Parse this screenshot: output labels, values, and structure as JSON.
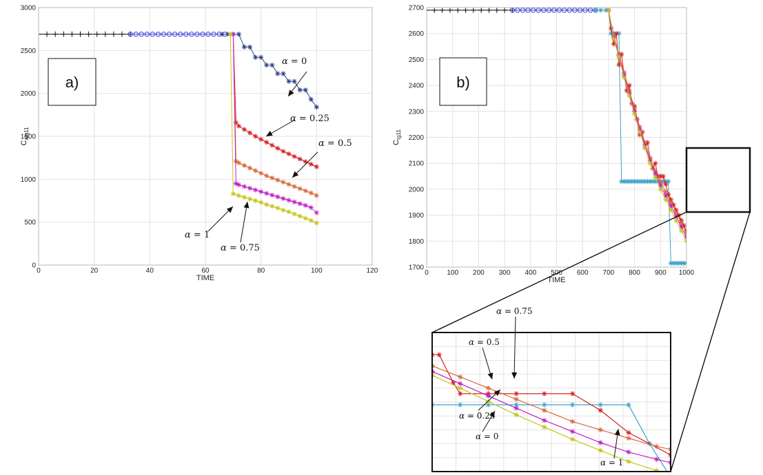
{
  "chart_data": [
    {
      "id": "a",
      "type": "line",
      "panel_label": "a)",
      "xlabel": "TIME",
      "ylabel_main": "C",
      "ylabel_sub": "alg11",
      "xlim": [
        0,
        120
      ],
      "ylim": [
        0,
        3000
      ],
      "xticks": [
        0,
        20,
        40,
        60,
        80,
        100,
        120
      ],
      "yticks": [
        0,
        500,
        1000,
        1500,
        2000,
        2500,
        3000
      ],
      "grid": true,
      "series": [
        {
          "color": "#111111",
          "marker": "plus",
          "x": [
            0,
            3,
            6,
            9,
            12,
            15,
            18,
            21,
            24,
            27,
            30,
            33
          ],
          "y": [
            2690,
            2690,
            2690,
            2690,
            2690,
            2690,
            2690,
            2690,
            2690,
            2690,
            2690,
            2690
          ]
        },
        {
          "color": "#3b3fd6",
          "marker": "circle",
          "x": [
            33,
            35,
            37,
            39,
            41,
            43,
            45,
            47,
            49,
            51,
            53,
            55,
            57,
            59,
            61,
            63,
            65,
            67
          ],
          "y": [
            2690,
            2690,
            2690,
            2690,
            2690,
            2690,
            2690,
            2690,
            2690,
            2690,
            2690,
            2690,
            2690,
            2690,
            2690,
            2690,
            2690,
            2690
          ]
        },
        {
          "color": "#2a3f86",
          "marker": "star",
          "name": "alpha0",
          "x": [
            66,
            68,
            70,
            72,
            74,
            76,
            78,
            80,
            82,
            84,
            86,
            88,
            90,
            92,
            94,
            96,
            98,
            100
          ],
          "y": [
            2690,
            2690,
            2690,
            2690,
            2540,
            2540,
            2420,
            2420,
            2330,
            2330,
            2230,
            2230,
            2140,
            2140,
            2040,
            2040,
            1930,
            1840
          ]
        },
        {
          "color": "#d42020",
          "marker": "star",
          "x": [
            70,
            71,
            72,
            74,
            76,
            78,
            80,
            82,
            84,
            86,
            88,
            90,
            92,
            94,
            96,
            98,
            100
          ],
          "y": [
            2690,
            1660,
            1620,
            1580,
            1540,
            1500,
            1465,
            1430,
            1395,
            1360,
            1325,
            1295,
            1265,
            1235,
            1205,
            1175,
            1145
          ]
        },
        {
          "color": "#d8673a",
          "marker": "star",
          "x": [
            70,
            71,
            72,
            74,
            76,
            78,
            80,
            82,
            84,
            86,
            88,
            90,
            92,
            94,
            96,
            98,
            100
          ],
          "y": [
            2690,
            1210,
            1190,
            1160,
            1130,
            1100,
            1070,
            1040,
            1015,
            990,
            965,
            940,
            915,
            890,
            865,
            840,
            810
          ]
        },
        {
          "color": "#c020c8",
          "marker": "star",
          "x": [
            70,
            71,
            72,
            74,
            76,
            78,
            80,
            82,
            84,
            86,
            88,
            90,
            92,
            94,
            96,
            98,
            100
          ],
          "y": [
            2690,
            950,
            935,
            915,
            895,
            875,
            855,
            835,
            815,
            795,
            775,
            755,
            735,
            715,
            695,
            670,
            610
          ]
        },
        {
          "color": "#c4c41a",
          "marker": "star",
          "x": [
            69,
            70,
            72,
            74,
            76,
            78,
            80,
            82,
            84,
            86,
            88,
            90,
            92,
            94,
            96,
            98,
            100
          ],
          "y": [
            2690,
            830,
            810,
            790,
            770,
            750,
            730,
            705,
            685,
            665,
            640,
            620,
            595,
            570,
            545,
            520,
            490
          ]
        }
      ],
      "annotations": [
        {
          "alpha": "α",
          "text": " = 0"
        },
        {
          "alpha": "α",
          "text": " = 0.25"
        },
        {
          "alpha": "α",
          "text": " = 0.5"
        },
        {
          "alpha": "α",
          "text": " = 1"
        },
        {
          "alpha": "α",
          "text": " = 0.75"
        }
      ]
    },
    {
      "id": "b",
      "type": "line",
      "panel_label": "b)",
      "xlabel": "TIME",
      "ylabel_main": "C",
      "ylabel_sub": "tg11",
      "xlim": [
        0,
        1000
      ],
      "ylim": [
        1700,
        2700
      ],
      "xticks": [
        0,
        100,
        200,
        300,
        400,
        500,
        600,
        700,
        800,
        900,
        1000
      ],
      "yticks": [
        1700,
        1800,
        1900,
        2000,
        2100,
        2200,
        2300,
        2400,
        2500,
        2600,
        2700
      ],
      "grid": true,
      "series": [
        {
          "color": "#111111",
          "marker": "plus",
          "x": [
            0,
            30,
            60,
            90,
            120,
            150,
            180,
            210,
            240,
            270,
            300,
            330
          ],
          "y": [
            2690,
            2690,
            2690,
            2690,
            2690,
            2690,
            2690,
            2690,
            2690,
            2690,
            2690,
            2690
          ]
        },
        {
          "color": "#3b3fd6",
          "marker": "circle",
          "x": [
            330,
            350,
            370,
            390,
            410,
            430,
            450,
            470,
            490,
            510,
            530,
            550,
            570,
            590,
            610,
            630,
            650
          ],
          "y": [
            2690,
            2690,
            2690,
            2690,
            2690,
            2690,
            2690,
            2690,
            2690,
            2690,
            2690,
            2690,
            2690,
            2690,
            2690,
            2690,
            2690
          ]
        },
        {
          "color": "#3aa0c8",
          "marker": "star",
          "x": [
            650,
            670,
            690,
            700,
            710,
            720,
            740,
            750,
            760,
            770,
            780,
            790,
            800,
            810,
            820,
            830,
            840,
            850,
            860,
            870,
            880,
            890,
            900,
            910,
            920,
            930,
            940,
            950,
            960,
            970,
            980,
            990,
            1000
          ],
          "y": [
            2690,
            2690,
            2690,
            2690,
            2600,
            2600,
            2600,
            2030,
            2030,
            2030,
            2030,
            2030,
            2030,
            2030,
            2030,
            2030,
            2030,
            2030,
            2030,
            2030,
            2030,
            2030,
            2030,
            2030,
            2030,
            2030,
            1715,
            1715,
            1715,
            1715,
            1715,
            1715,
            1715
          ]
        },
        {
          "color": "#d42020",
          "marker": "star",
          "x": [
            700,
            710,
            720,
            730,
            740,
            750,
            760,
            770,
            780,
            790,
            800,
            810,
            820,
            830,
            840,
            850,
            860,
            870,
            880,
            890,
            900,
            910,
            920,
            930,
            940,
            950,
            960,
            970,
            980,
            990,
            1000
          ],
          "y": [
            2690,
            2620,
            2560,
            2600,
            2480,
            2520,
            2440,
            2380,
            2400,
            2330,
            2320,
            2270,
            2210,
            2220,
            2160,
            2180,
            2120,
            2080,
            2100,
            2050,
            2050,
            2050,
            2020,
            1980,
            1960,
            1940,
            1920,
            1900,
            1880,
            1860,
            1840
          ]
        },
        {
          "color": "#d8673a",
          "marker": "star",
          "x": [
            700,
            720,
            740,
            760,
            780,
            800,
            820,
            840,
            860,
            880,
            900,
            920,
            940,
            960,
            980,
            1000
          ],
          "y": [
            2690,
            2590,
            2520,
            2450,
            2380,
            2310,
            2240,
            2180,
            2120,
            2070,
            2030,
            1990,
            1950,
            1910,
            1870,
            1830
          ]
        },
        {
          "color": "#c020c8",
          "marker": "star",
          "x": [
            700,
            720,
            740,
            760,
            780,
            800,
            820,
            840,
            860,
            880,
            900,
            920,
            940,
            960,
            980,
            1000
          ],
          "y": [
            2690,
            2585,
            2515,
            2440,
            2370,
            2300,
            2230,
            2170,
            2110,
            2060,
            2015,
            1975,
            1935,
            1895,
            1855,
            1815
          ]
        },
        {
          "color": "#c4c41a",
          "marker": "star",
          "x": [
            700,
            720,
            740,
            760,
            780,
            800,
            820,
            840,
            860,
            880,
            900,
            920,
            940,
            960,
            980,
            1000
          ],
          "y": [
            2690,
            2580,
            2510,
            2430,
            2360,
            2290,
            2220,
            2160,
            2100,
            2045,
            2000,
            1960,
            1920,
            1880,
            1840,
            1800
          ]
        }
      ]
    },
    {
      "id": "zoom",
      "type": "line",
      "grid": true,
      "xlim": [
        790,
        960
      ],
      "ylim": [
        1910,
        2160
      ],
      "series": [
        {
          "color": "#3aa0c8",
          "marker": "star",
          "x": [
            790,
            810,
            830,
            850,
            870,
            890,
            910,
            930,
            945,
            960
          ],
          "y": [
            2030,
            2030,
            2030,
            2030,
            2030,
            2030,
            2030,
            2030,
            1960,
            1900
          ]
        },
        {
          "color": "#d42020",
          "marker": "star",
          "x": [
            790,
            795,
            805,
            810,
            830,
            850,
            870,
            890,
            910,
            930,
            960
          ],
          "y": [
            2120,
            2120,
            2070,
            2050,
            2050,
            2050,
            2050,
            2050,
            2020,
            1980,
            1940
          ]
        },
        {
          "color": "#d8673a",
          "marker": "star",
          "x": [
            790,
            810,
            830,
            850,
            870,
            890,
            910,
            930,
            950,
            960
          ],
          "y": [
            2100,
            2080,
            2060,
            2040,
            2020,
            2000,
            1985,
            1970,
            1955,
            1950
          ]
        },
        {
          "color": "#c020c8",
          "marker": "star",
          "x": [
            790,
            810,
            830,
            850,
            870,
            890,
            910,
            930,
            950,
            960
          ],
          "y": [
            2090,
            2068,
            2046,
            2024,
            2002,
            1982,
            1962,
            1945,
            1932,
            1926
          ]
        },
        {
          "color": "#c4c41a",
          "marker": "star",
          "x": [
            790,
            810,
            830,
            850,
            870,
            890,
            910,
            930,
            950,
            960
          ],
          "y": [
            2083,
            2060,
            2036,
            2012,
            1990,
            1968,
            1948,
            1928,
            1912,
            1905
          ]
        }
      ],
      "annotations": [
        {
          "alpha": "α",
          "text": " = 0.5"
        },
        {
          "alpha": "α",
          "text": " = 0.75"
        },
        {
          "alpha": "α",
          "text": " = 0.25"
        },
        {
          "alpha": "α",
          "text": " = 0"
        },
        {
          "alpha": "α",
          "text": " = 1"
        }
      ]
    }
  ]
}
